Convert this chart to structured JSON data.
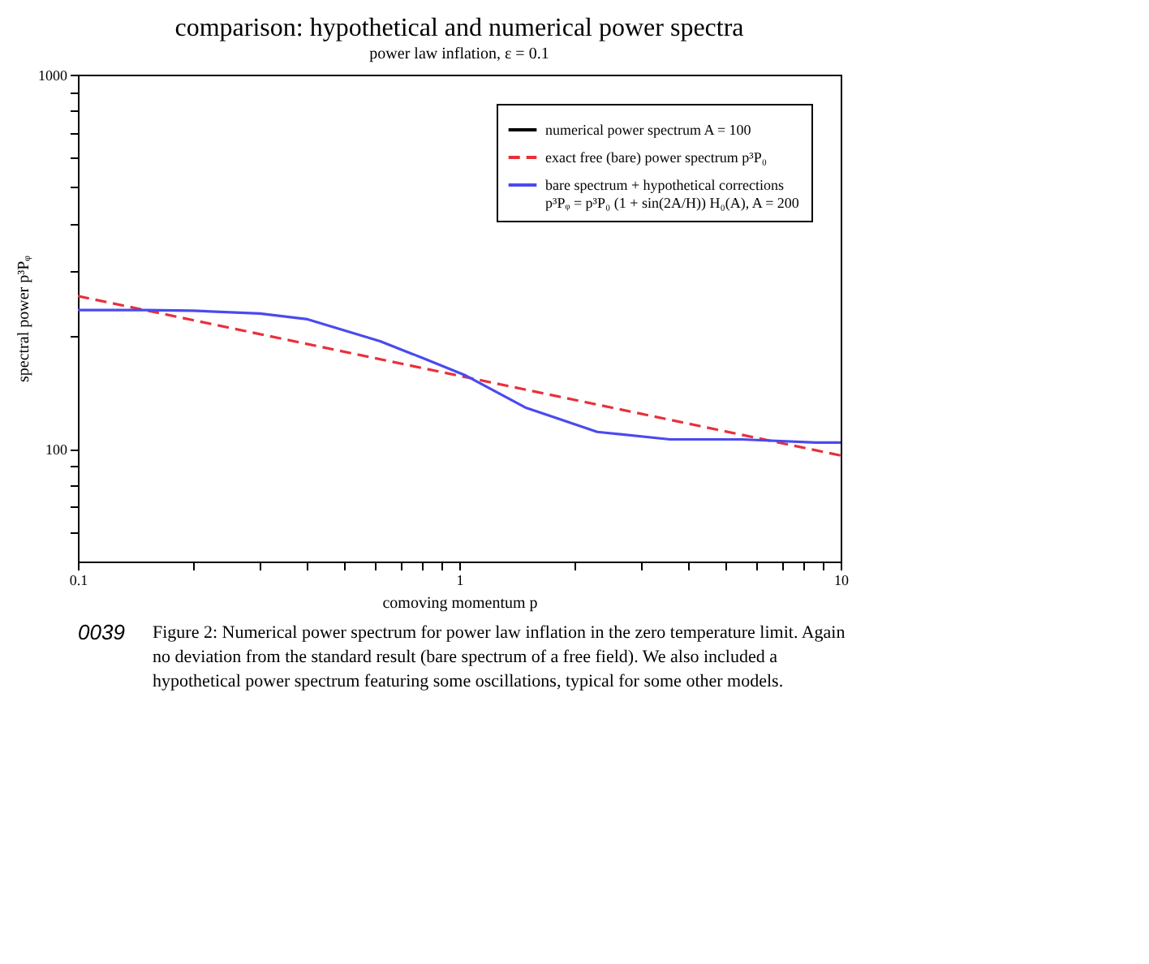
{
  "chart_data": {
    "type": "line",
    "title": "comparison: hypothetical and numerical power spectra",
    "subtitle": "power law inflation, ε = 0.1",
    "xlabel": "comoving momentum p",
    "ylabel": "spectral power p³Pᵩ",
    "log": "xy",
    "legend": "top right",
    "marker": "none",
    "x": [
      0.1,
      0.15,
      0.2,
      0.3,
      0.4,
      0.62,
      0.8,
      1.04,
      1.49,
      2.3,
      3.57,
      5.5,
      8.6,
      10
    ],
    "series": [
      {
        "name": "numerical power spectrum A = 100",
        "color": "#000000",
        "line_style": "solid",
        "values": [
          null,
          null,
          null,
          null,
          null,
          null,
          null,
          null,
          null,
          null,
          null,
          null,
          null,
          null
        ]
      },
      {
        "name": "exact free (bare) power spectrum p³P₀",
        "color": "#e8303a",
        "line_style": "dashed",
        "x": [
          0.1,
          10
        ],
        "values": [
          256,
          96
        ]
      },
      {
        "name": "bare spectrum + hypothetical corrections\np³Pᵩ = p³P₀ (1 + sin(2A/H)) H₀(A), A = 200",
        "color": "#4a4af0",
        "line_style": "solid",
        "values": [
          235,
          235,
          234,
          230,
          222,
          194,
          175,
          157,
          129,
          111,
          106,
          106,
          104,
          104
        ]
      }
    ],
    "xlim": [
      0.1,
      10
    ],
    "xticks": [
      0.1,
      {
        "value": 0.2,
        "label": null
      },
      {
        "value": 0.3,
        "label": null
      },
      {
        "value": 0.4,
        "label": null
      },
      {
        "value": 0.5,
        "label": null
      },
      {
        "value": 0.6,
        "label": null
      },
      {
        "value": 0.7,
        "label": null
      },
      {
        "value": 0.8,
        "label": null
      },
      {
        "value": 0.9,
        "label": null
      },
      1,
      {
        "value": 2,
        "label": null
      },
      {
        "value": 3,
        "label": null
      },
      {
        "value": 4,
        "label": null
      },
      {
        "value": 5,
        "label": null
      },
      {
        "value": 6,
        "label": null
      },
      {
        "value": 7,
        "label": null
      },
      {
        "value": 8,
        "label": null
      },
      {
        "value": 9,
        "label": null
      },
      10
    ],
    "ylim": [
      50,
      1000
    ],
    "yticks": [
      {
        "value": 60,
        "label": null
      },
      {
        "value": 70,
        "label": null
      },
      {
        "value": 80,
        "label": null
      },
      {
        "value": 90,
        "label": null
      },
      100,
      {
        "value": 200,
        "label": null
      },
      {
        "value": 300,
        "label": null
      },
      {
        "value": 400,
        "label": null
      },
      {
        "value": 500,
        "label": null
      },
      {
        "value": 600,
        "label": null
      },
      {
        "value": 700,
        "label": null
      },
      {
        "value": 800,
        "label": null
      },
      {
        "value": 900,
        "label": null
      },
      1000
    ],
    "annotations": [
      "Figure 2: Numerical power spectrum for power law inflation in the zero temperature limit. Again no deviation from the standard result (bare spectrum of a free field). We also included a hypothetical power spectrum featuring some oscillations, typical for some other models.",
      "0039"
    ]
  }
}
